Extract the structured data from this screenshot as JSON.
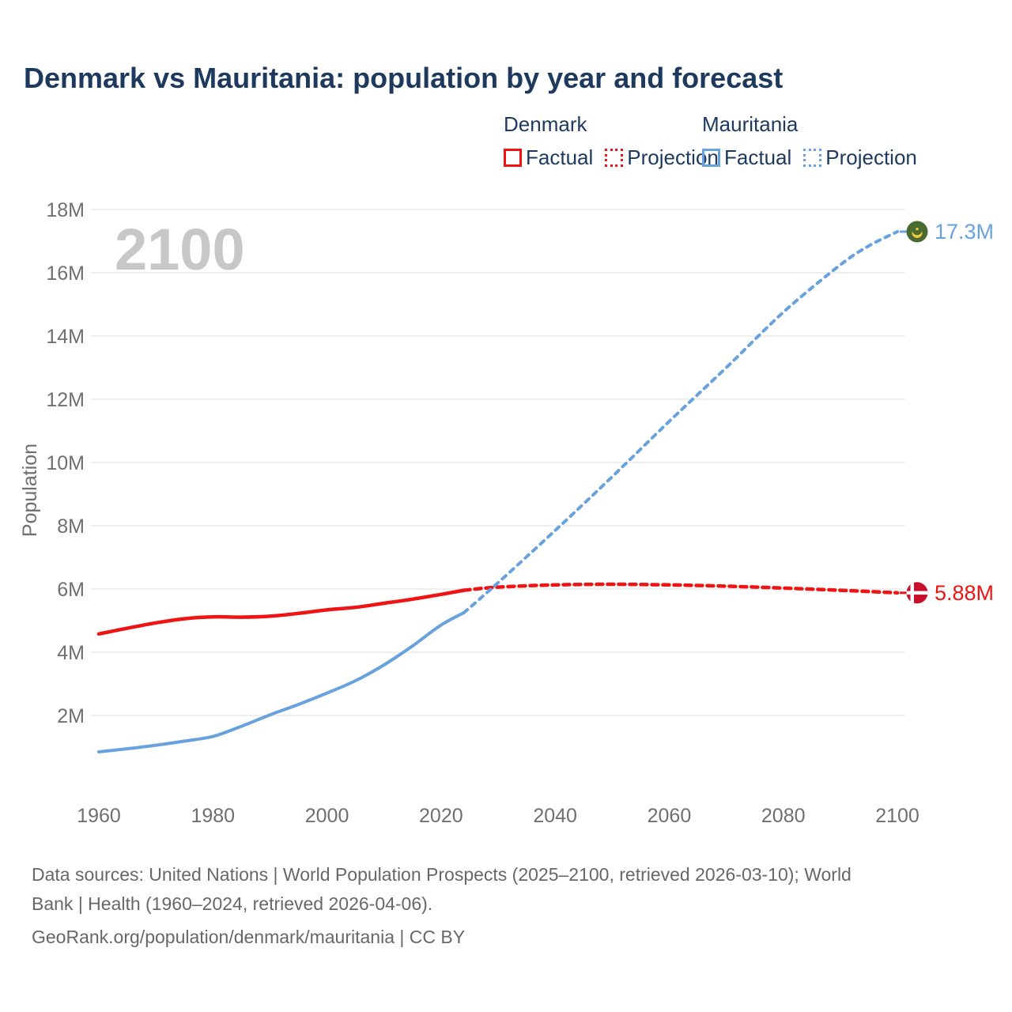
{
  "title": "Denmark vs Mauritania: population by year and forecast",
  "legend": {
    "groups": [
      {
        "country": "Denmark",
        "color": "#ee1414",
        "factual_label": "Factual",
        "projection_label": "Projection"
      },
      {
        "country": "Mauritania",
        "color": "#68a2de",
        "factual_label": "Factual",
        "projection_label": "Projection"
      }
    ]
  },
  "watermark": "2100",
  "colors": {
    "denmark_line": "#ee1414",
    "mauritania_line": "#68a2de",
    "title_text": "#1d3a5e",
    "axis_text": "#6f6f6f",
    "gridline": "#ebebeb",
    "watermark_text": "#c7c7c7",
    "footer_text": "#676767",
    "mauritania_flag_green": "#4a6b2f",
    "mauritania_flag_gold": "#f2c83e",
    "denmark_flag_red": "#c8102e"
  },
  "chart_data": {
    "type": "line",
    "title": "Denmark vs Mauritania: population by year and forecast",
    "xlabel": "",
    "ylabel": "Population",
    "xlim": [
      1960,
      2100
    ],
    "ylim": [
      0,
      18
    ],
    "grid": true,
    "legend_position": "top-right",
    "unit": "millions",
    "x_ticks": [
      1960,
      1980,
      2000,
      2020,
      2040,
      2060,
      2080,
      2100
    ],
    "y_tick_values": [
      2,
      4,
      6,
      8,
      10,
      12,
      14,
      16,
      18
    ],
    "y_tick_labels": [
      "2M",
      "4M",
      "6M",
      "8M",
      "10M",
      "12M",
      "14M",
      "16M",
      "18M"
    ],
    "series": [
      {
        "name": "Denmark Factual",
        "country": "Denmark",
        "kind": "factual",
        "color": "#ee1414",
        "line_style": "solid",
        "points": [
          [
            1960,
            4.58
          ],
          [
            1965,
            4.76
          ],
          [
            1970,
            4.93
          ],
          [
            1975,
            5.06
          ],
          [
            1980,
            5.12
          ],
          [
            1985,
            5.11
          ],
          [
            1990,
            5.14
          ],
          [
            1995,
            5.23
          ],
          [
            2000,
            5.34
          ],
          [
            2005,
            5.42
          ],
          [
            2010,
            5.55
          ],
          [
            2015,
            5.68
          ],
          [
            2020,
            5.83
          ],
          [
            2024,
            5.96
          ]
        ]
      },
      {
        "name": "Denmark Projection",
        "country": "Denmark",
        "kind": "projection",
        "color": "#ee1414",
        "line_style": "dotted",
        "points": [
          [
            2024,
            5.96
          ],
          [
            2030,
            6.06
          ],
          [
            2040,
            6.13
          ],
          [
            2050,
            6.15
          ],
          [
            2060,
            6.13
          ],
          [
            2070,
            6.09
          ],
          [
            2080,
            6.03
          ],
          [
            2090,
            5.96
          ],
          [
            2100,
            5.88
          ]
        ]
      },
      {
        "name": "Mauritania Factual",
        "country": "Mauritania",
        "kind": "factual",
        "color": "#68a2de",
        "line_style": "solid",
        "points": [
          [
            1960,
            0.85
          ],
          [
            1965,
            0.95
          ],
          [
            1970,
            1.06
          ],
          [
            1975,
            1.19
          ],
          [
            1980,
            1.34
          ],
          [
            1985,
            1.66
          ],
          [
            1990,
            2.02
          ],
          [
            1995,
            2.35
          ],
          [
            2000,
            2.71
          ],
          [
            2005,
            3.1
          ],
          [
            2010,
            3.6
          ],
          [
            2015,
            4.2
          ],
          [
            2020,
            4.86
          ],
          [
            2024,
            5.25
          ]
        ]
      },
      {
        "name": "Mauritania Projection",
        "country": "Mauritania",
        "kind": "projection",
        "color": "#68a2de",
        "line_style": "dotted",
        "points": [
          [
            2024,
            5.25
          ],
          [
            2030,
            6.2
          ],
          [
            2040,
            7.85
          ],
          [
            2050,
            9.55
          ],
          [
            2060,
            11.3
          ],
          [
            2070,
            13.0
          ],
          [
            2080,
            14.75
          ],
          [
            2090,
            16.25
          ],
          [
            2095,
            16.85
          ],
          [
            2100,
            17.3
          ]
        ]
      }
    ],
    "end_markers": [
      {
        "country": "Mauritania",
        "label": "17.3M",
        "value": 17.3,
        "color": "#68a2de",
        "flag": "mauritania"
      },
      {
        "country": "Denmark",
        "label": "5.88M",
        "value": 5.88,
        "color": "#ee1414",
        "flag": "denmark"
      }
    ]
  },
  "footer": {
    "sources_line1": "Data sources: United Nations | World Population Prospects (2025–2100, retrieved 2026-03-10); World",
    "sources_line2": "Bank | Health (1960–2024, retrieved 2026-04-06).",
    "attribution": "GeoRank.org/population/denmark/mauritania | CC BY"
  }
}
